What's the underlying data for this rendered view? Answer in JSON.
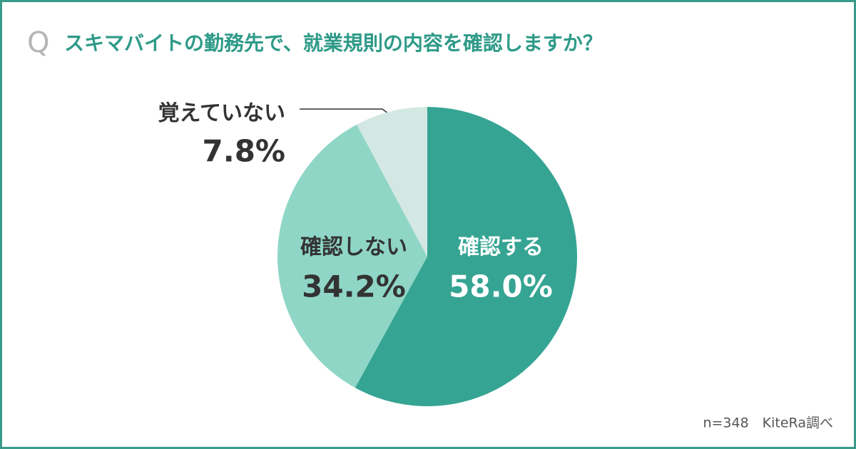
{
  "chart_data": {
    "type": "pie",
    "title_prefix": "Q",
    "title": "スキマバイトの勤務先で、就業規則の内容を確認しますか？",
    "categories": [
      "確認する",
      "確認しない",
      "覚えていない"
    ],
    "values": [
      58.0,
      34.2,
      7.8
    ],
    "value_labels": [
      "58.0%",
      "34.2%",
      "7.8%"
    ],
    "colors": [
      "#36a493",
      "#8fd6c6",
      "#d4e8e3"
    ],
    "source": "n=348　KiteRa調べ"
  }
}
